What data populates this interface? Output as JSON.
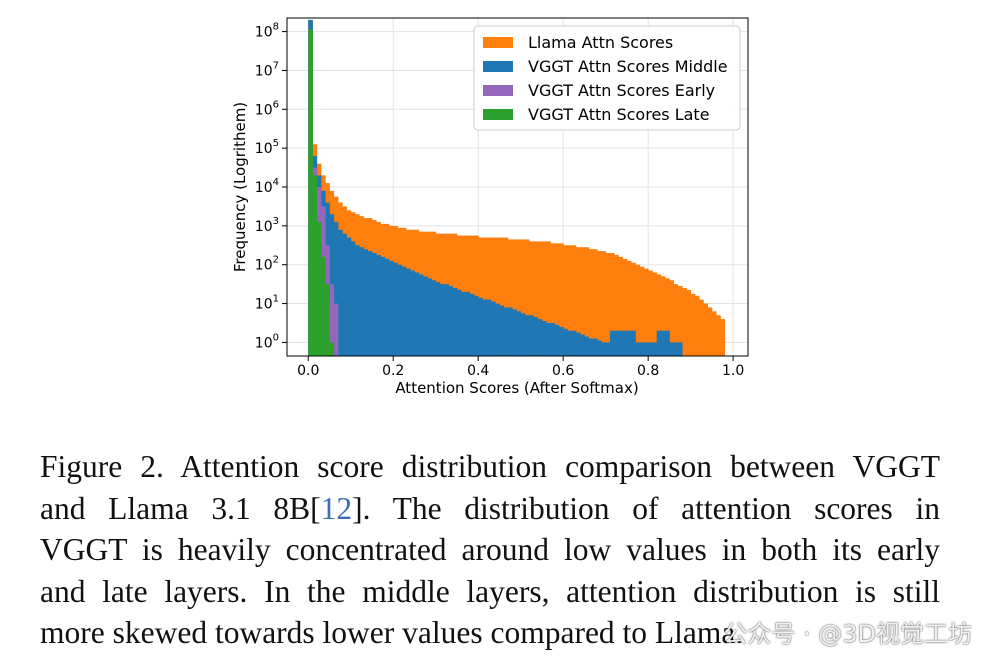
{
  "chart_data": {
    "type": "histogram",
    "xlabel": "Attention Scores (After Softmax)",
    "ylabel": "Frequency (Logrithem)",
    "yscale": "log",
    "xlim": [
      -0.05,
      1.035
    ],
    "ylim_exponent": [
      -0.35,
      8.35
    ],
    "grid": true,
    "legend_position": "top-right",
    "x_ticks": [
      "0.0",
      "0.2",
      "0.4",
      "0.6",
      "0.8",
      "1.0"
    ],
    "x_tick_values": [
      0.0,
      0.2,
      0.4,
      0.6,
      0.8,
      1.0
    ],
    "y_ticks": [
      {
        "base": "10",
        "exp": "0",
        "value": 0
      },
      {
        "base": "10",
        "exp": "1",
        "value": 1
      },
      {
        "base": "10",
        "exp": "2",
        "value": 2
      },
      {
        "base": "10",
        "exp": "3",
        "value": 3
      },
      {
        "base": "10",
        "exp": "4",
        "value": 4
      },
      {
        "base": "10",
        "exp": "5",
        "value": 5
      },
      {
        "base": "10",
        "exp": "6",
        "value": 6
      },
      {
        "base": "10",
        "exp": "7",
        "value": 7
      },
      {
        "base": "10",
        "exp": "8",
        "value": 8
      }
    ],
    "series": [
      {
        "name": "Llama Attn Scores",
        "color": "#ff7f0e",
        "bin_start": 0.0,
        "bin_width": 0.01,
        "log10_counts": [
          8.3,
          5.1,
          4.6,
          4.3,
          4.1,
          3.9,
          3.75,
          3.6,
          3.5,
          3.4,
          3.35,
          3.3,
          3.25,
          3.2,
          3.2,
          3.15,
          3.1,
          3.05,
          3.05,
          3.0,
          3.0,
          2.95,
          2.95,
          2.9,
          2.9,
          2.9,
          2.85,
          2.85,
          2.85,
          2.85,
          2.8,
          2.8,
          2.8,
          2.8,
          2.8,
          2.75,
          2.75,
          2.75,
          2.75,
          2.75,
          2.7,
          2.7,
          2.7,
          2.7,
          2.7,
          2.7,
          2.7,
          2.65,
          2.65,
          2.65,
          2.65,
          2.65,
          2.6,
          2.6,
          2.6,
          2.6,
          2.6,
          2.55,
          2.55,
          2.55,
          2.5,
          2.5,
          2.5,
          2.45,
          2.45,
          2.45,
          2.4,
          2.4,
          2.35,
          2.35,
          2.3,
          2.3,
          2.25,
          2.2,
          2.15,
          2.1,
          2.05,
          2.0,
          1.95,
          1.9,
          1.85,
          1.8,
          1.75,
          1.7,
          1.65,
          1.6,
          1.5,
          1.45,
          1.4,
          1.35,
          1.25,
          1.2,
          1.1,
          1.0,
          0.9,
          0.8,
          0.7,
          0.6
        ]
      },
      {
        "name": "VGGT Attn Scores Middle",
        "color": "#1f77b4",
        "bin_start": 0.0,
        "bin_width": 0.01,
        "log10_counts": [
          8.3,
          4.8,
          4.3,
          3.9,
          3.6,
          3.3,
          3.1,
          2.9,
          2.8,
          2.7,
          2.6,
          2.5,
          2.45,
          2.4,
          2.35,
          2.3,
          2.25,
          2.2,
          2.15,
          2.1,
          2.05,
          2.0,
          1.95,
          1.9,
          1.85,
          1.8,
          1.75,
          1.7,
          1.65,
          1.6,
          1.55,
          1.5,
          1.5,
          1.45,
          1.4,
          1.35,
          1.3,
          1.3,
          1.25,
          1.2,
          1.15,
          1.1,
          1.1,
          1.05,
          1.0,
          0.95,
          0.9,
          0.9,
          0.85,
          0.8,
          0.75,
          0.7,
          0.7,
          0.65,
          0.6,
          0.55,
          0.5,
          0.5,
          0.45,
          0.4,
          0.35,
          0.3,
          0.3,
          0.25,
          0.2,
          0.15,
          0.1,
          0.1,
          0.05,
          0.0,
          0.0,
          0.3,
          0.3,
          0.3,
          0.3,
          0.3,
          0.3,
          0.0,
          0.0,
          0.0,
          0.0,
          0.0,
          0.3,
          0.3,
          0.3,
          0.0,
          0.0,
          0.0
        ]
      },
      {
        "name": "VGGT Attn Scores Early",
        "color": "#9467bd",
        "bin_start": 0.0,
        "bin_width": 0.01,
        "log10_counts": [
          8.0,
          4.5,
          4.0,
          3.5,
          2.5,
          1.5,
          1.0
        ]
      },
      {
        "name": "VGGT Attn Scores Late",
        "color": "#2ca02c",
        "bin_start": 0.0,
        "bin_width": 0.01,
        "log10_counts": [
          8.05,
          4.3,
          3.1,
          2.2,
          1.5,
          0.0
        ]
      }
    ]
  },
  "caption": {
    "line1": "Figure 2. Attention score distribution comparison between VGGT",
    "line2_a": "and Llama 3.1 8B[",
    "line2_ref": "12",
    "line2_b": "].  The distribution of attention scores in",
    "line3": "VGGT is heavily concentrated around low values in both its early",
    "line4": "and late layers. In the middle layers, attention distribution is still",
    "line5": "more skewed towards lower values compared to Llama."
  },
  "watermark": "公众号 · @3D视觉工坊"
}
